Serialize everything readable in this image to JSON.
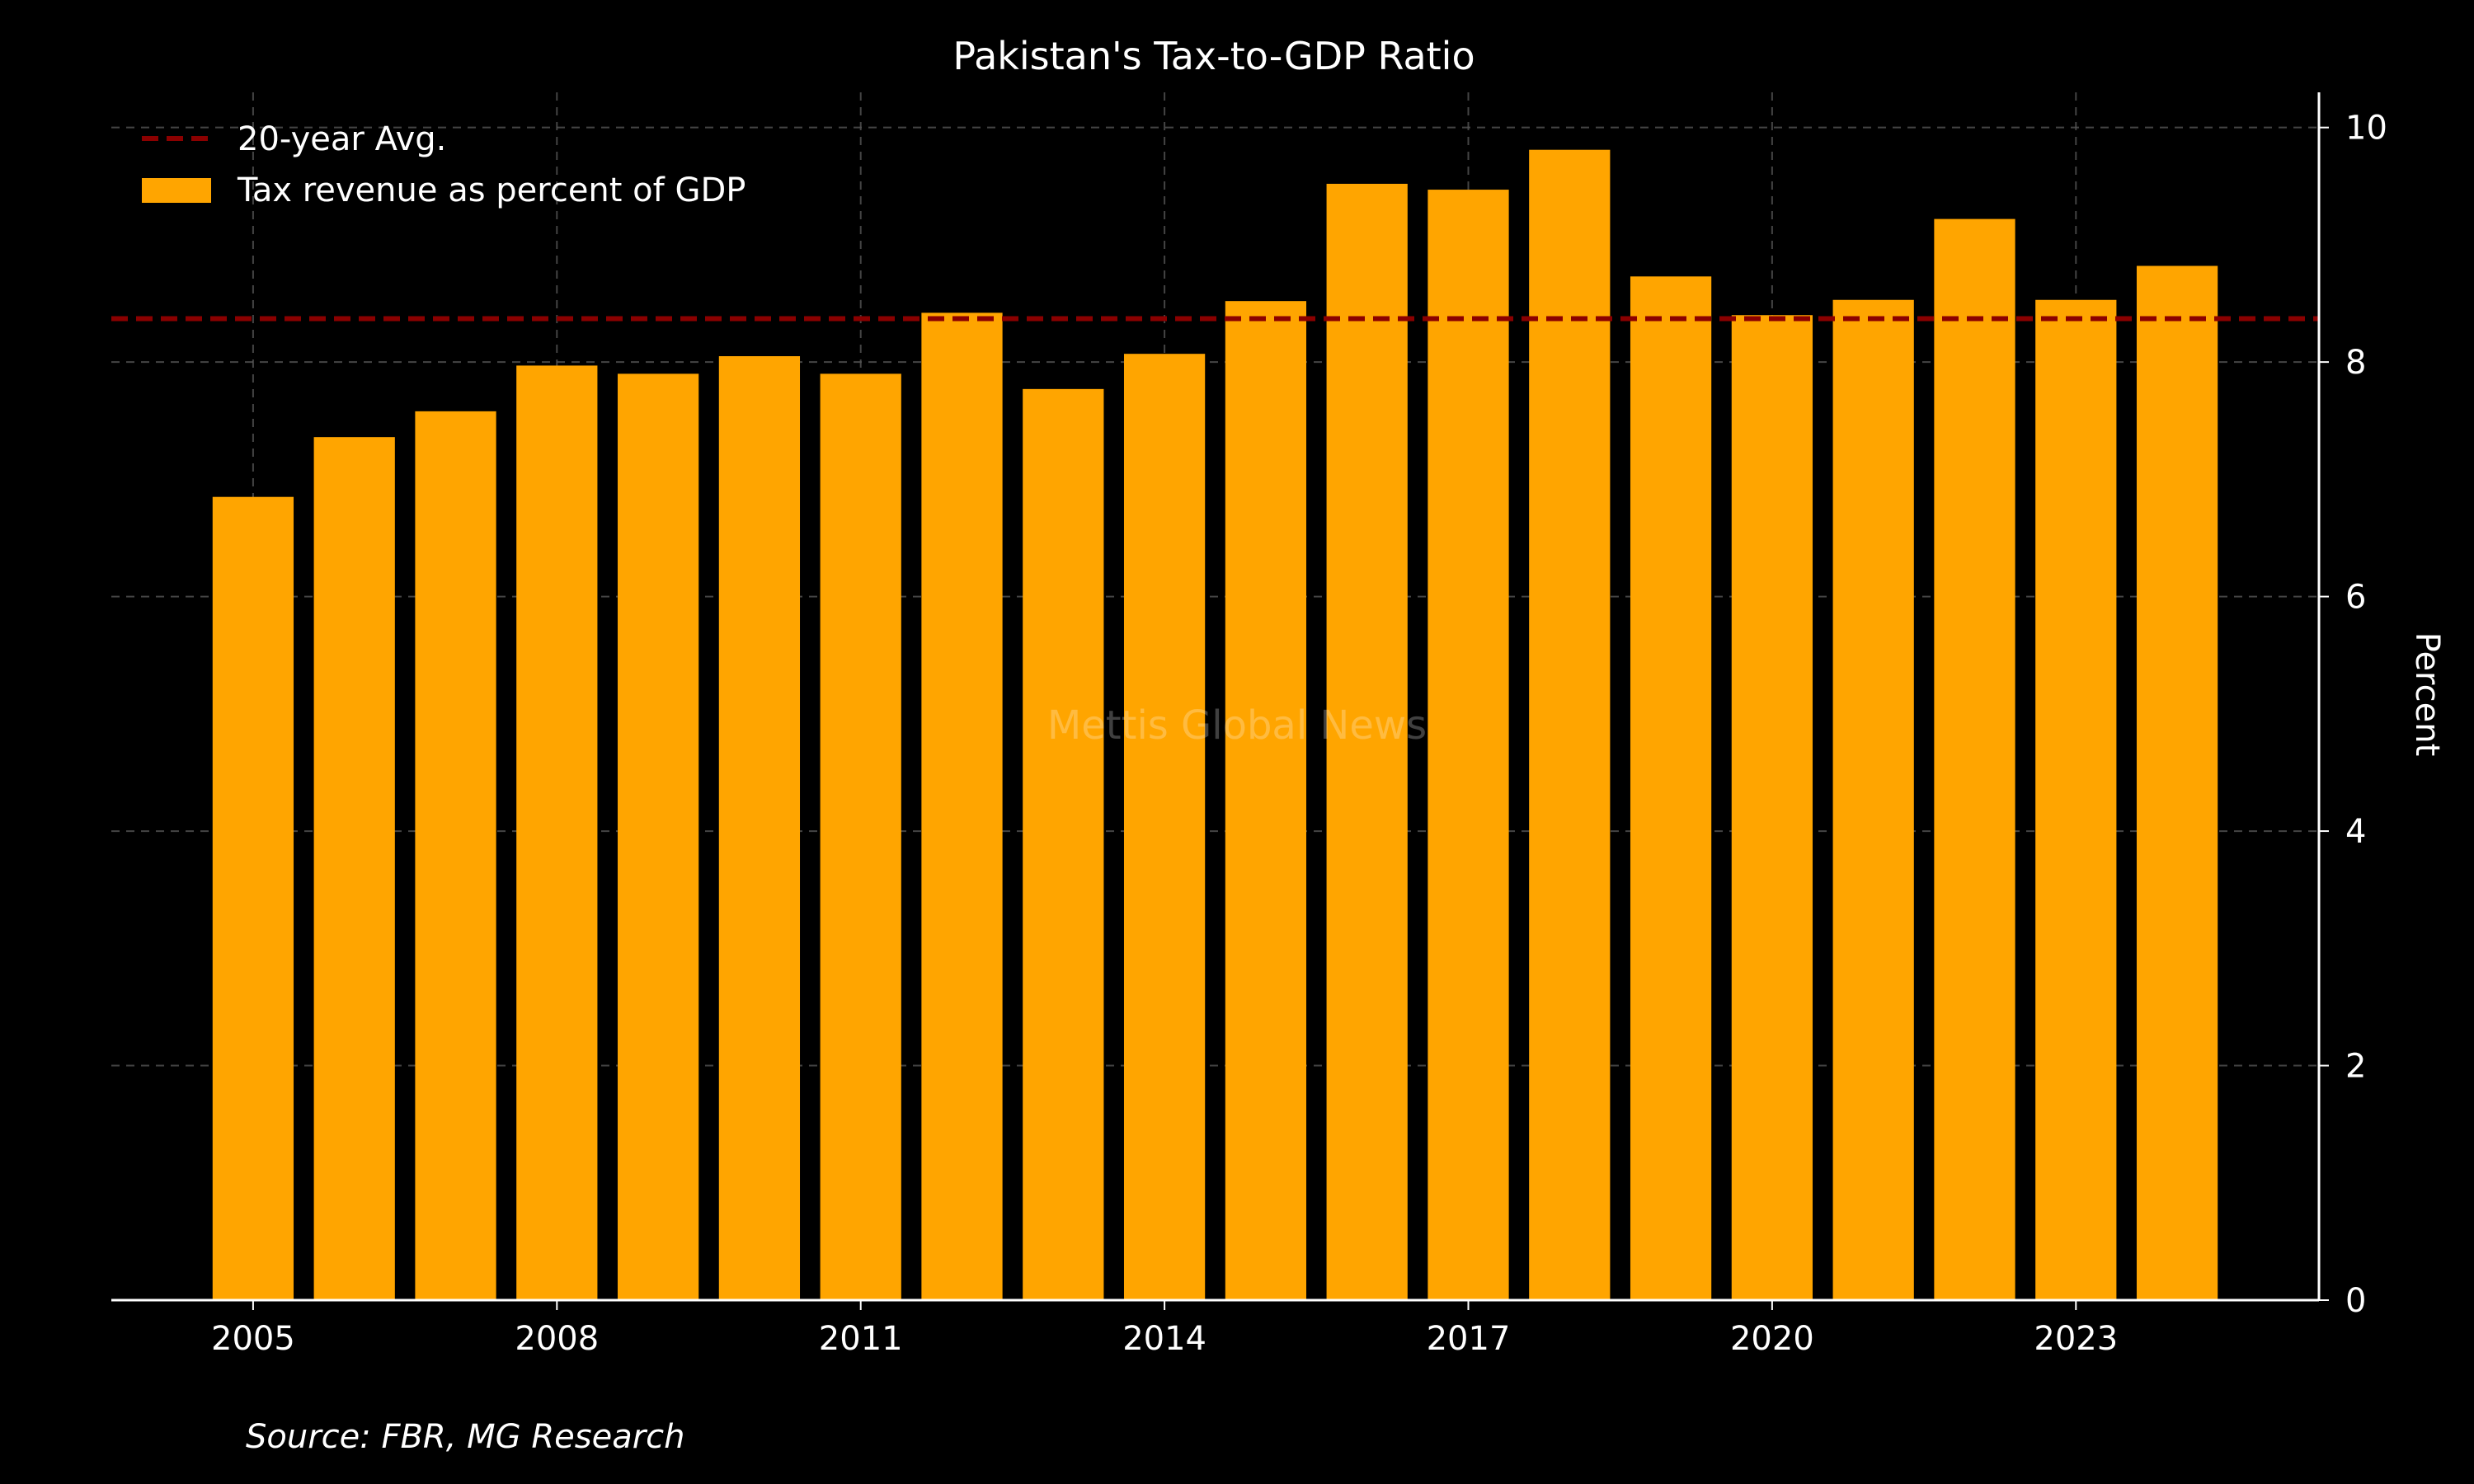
{
  "chart_data": {
    "type": "bar",
    "title": "Pakistan's Tax-to-GDP Ratio",
    "ylabel": "Percent",
    "xlabel": "",
    "x": [
      2005,
      2006,
      2007,
      2008,
      2009,
      2010,
      2011,
      2012,
      2013,
      2014,
      2015,
      2016,
      2017,
      2018,
      2019,
      2020,
      2021,
      2022,
      2023,
      2024
    ],
    "x_ticks": [
      2005,
      2008,
      2011,
      2014,
      2017,
      2020,
      2023
    ],
    "y_ticks": [
      0,
      2,
      4,
      6,
      8,
      10
    ],
    "xlim": [
      2003.6,
      2025.4
    ],
    "ylim": [
      0,
      10.3
    ],
    "y_axis_side": "right",
    "grid": true,
    "series": [
      {
        "name": "Tax revenue as percent of GDP",
        "type": "bar",
        "values": [
          6.85,
          7.36,
          7.58,
          7.97,
          7.9,
          8.05,
          7.9,
          8.42,
          7.77,
          8.07,
          8.52,
          9.52,
          9.47,
          9.81,
          8.73,
          8.4,
          8.53,
          9.22,
          8.53,
          8.82
        ]
      },
      {
        "name": "20-year Avg.",
        "type": "hline",
        "value": 8.37
      }
    ],
    "legend": {
      "position": "top-left",
      "entries": [
        "20-year Avg.",
        "Tax revenue as percent of GDP"
      ]
    },
    "source": "Source: FBR, MG Research",
    "watermark": "Mettis Global News",
    "colors": {
      "background": "#000000",
      "bar": "#ffa500",
      "avg_line": "#8b0000",
      "grid": "#555555",
      "text": "#ffffff",
      "watermark": "#a0522d"
    }
  }
}
